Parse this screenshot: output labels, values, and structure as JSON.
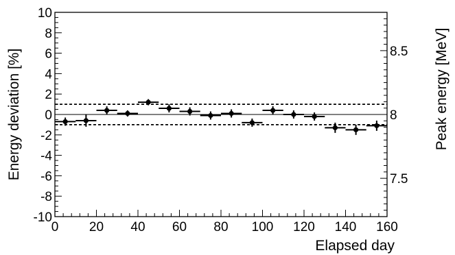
{
  "chart_data": {
    "type": "scatter",
    "title": "",
    "xlabel": "Elapsed day",
    "ylabel": "Energy deviation [%]",
    "ylabel_right": "Peak energy [MeV]",
    "xlim": [
      0,
      160
    ],
    "ylim": [
      -10,
      10
    ],
    "ylim_right": [
      7.2,
      8.8
    ],
    "x_ticks": [
      "0",
      "20",
      "40",
      "60",
      "80",
      "100",
      "120",
      "140",
      "160"
    ],
    "y_ticks": [
      "-10",
      "-8",
      "-6",
      "-4",
      "-2",
      "0",
      "2",
      "4",
      "6",
      "8",
      "10"
    ],
    "y_right_ticks": [
      "7.5",
      "8",
      "8.5"
    ],
    "grid": false,
    "reference_lines": [
      {
        "y": 0,
        "style": "solid"
      },
      {
        "y": 1,
        "style": "dashed"
      },
      {
        "y": -1,
        "style": "dashed"
      }
    ],
    "series": [
      {
        "x": [
          5,
          15,
          25,
          35,
          45,
          55,
          65,
          75,
          85,
          95,
          105,
          115,
          125,
          135,
          145,
          155
        ],
        "y": [
          -0.7,
          -0.6,
          0.4,
          0.1,
          1.2,
          0.6,
          0.3,
          -0.1,
          0.1,
          -0.8,
          0.4,
          0.0,
          -0.2,
          -1.3,
          -1.5,
          -1.1
        ],
        "x_err": [
          5,
          5,
          5,
          5,
          5,
          5,
          5,
          5,
          5,
          5,
          5,
          5,
          5,
          5,
          5,
          5
        ],
        "y_err": [
          0.4,
          0.6,
          0.4,
          0.3,
          0.3,
          0.4,
          0.4,
          0.4,
          0.4,
          0.4,
          0.4,
          0.4,
          0.4,
          0.5,
          0.5,
          0.5
        ],
        "color": "#000000"
      }
    ]
  }
}
